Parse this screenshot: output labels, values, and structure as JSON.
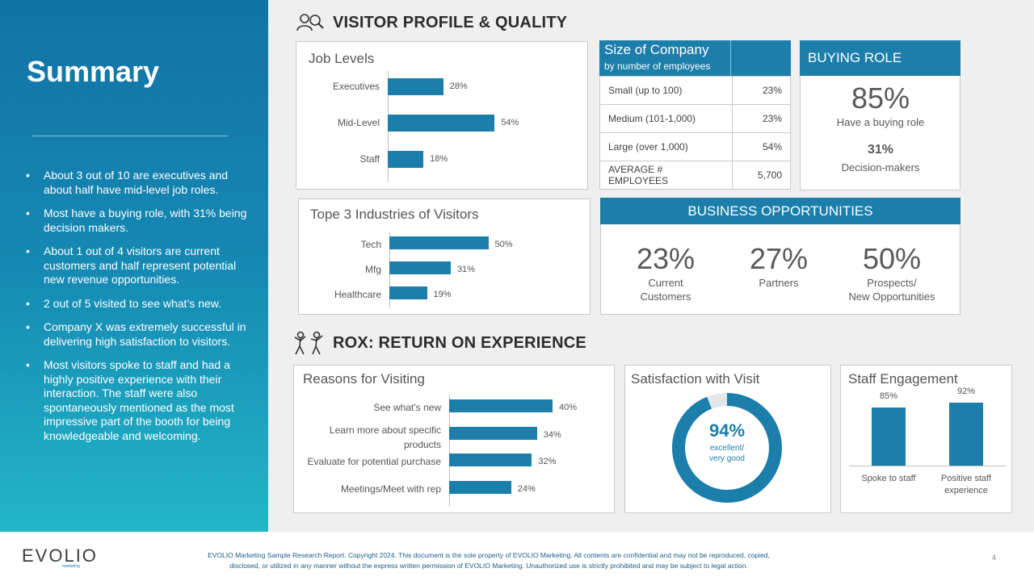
{
  "sidebar": {
    "title": "Summary",
    "bullets": [
      "About 3 out of 10 are executives and about half have mid-level job roles.",
      "Most have a buying role, with 31% being decision makers.",
      "About 1 out of 4 visitors are current customers and half represent potential new revenue opportunities.",
      "2 out of 5 visited to see what’s new.",
      "Company X was extremely successful in delivering high satisfaction to visitors.",
      "Most visitors spoke to staff and had a highly positive experience with their interaction. The staff were also spontaneously mentioned as the most impressive part of the booth for being knowledgeable and welcoming."
    ]
  },
  "sections": {
    "profile": "VISITOR PROFILE & QUALITY",
    "rox": "ROX: RETURN ON EXPERIENCE"
  },
  "job_levels": {
    "title": "Job Levels",
    "items": [
      {
        "label": "Executives",
        "value": 28,
        "text": "28%"
      },
      {
        "label": "Mid-Level",
        "value": 54,
        "text": "54%"
      },
      {
        "label": "Staff",
        "value": 18,
        "text": "18%"
      }
    ]
  },
  "company_size": {
    "title": "Size of Company",
    "subtitle": "by number of employees",
    "rows": [
      {
        "label": "Small (up to 100)",
        "value": "23%"
      },
      {
        "label": "Medium (101-1,000)",
        "value": "23%"
      },
      {
        "label": "Large (over 1,000)",
        "value": "54%"
      },
      {
        "label": "AVERAGE # EMPLOYEES",
        "value": "5,700"
      }
    ]
  },
  "buying_role": {
    "header": "BUYING ROLE",
    "big": "85%",
    "big_caption": "Have a buying role",
    "small": "31%",
    "small_caption": "Decision-makers"
  },
  "industries": {
    "title": "Tope 3 Industries of Visitors",
    "items": [
      {
        "label": "Tech",
        "value": 50,
        "text": "50%"
      },
      {
        "label": "Mfg",
        "value": 31,
        "text": "31%"
      },
      {
        "label": "Healthcare",
        "value": 19,
        "text": "19%"
      }
    ]
  },
  "opportunities": {
    "header": "BUSINESS OPPORTUNITIES",
    "items": [
      {
        "value": "23%",
        "line1": "Current",
        "line2": "Customers"
      },
      {
        "value": "27%",
        "line1": "Partners",
        "line2": ""
      },
      {
        "value": "50%",
        "line1": "Prospects/",
        "line2": "New Opportunities"
      }
    ]
  },
  "reasons": {
    "title": "Reasons for Visiting",
    "items": [
      {
        "line1": "See what's new",
        "line2": "",
        "value": 40,
        "text": "40%"
      },
      {
        "line1": "Learn more about specific",
        "line2": "products",
        "value": 34,
        "text": "34%"
      },
      {
        "line1": "Evaluate for potential purchase",
        "line2": "",
        "value": 32,
        "text": "32%"
      },
      {
        "line1": "Meetings/Meet with rep",
        "line2": "",
        "value": 24,
        "text": "24%"
      }
    ]
  },
  "satisfaction": {
    "title": "Satisfaction with Visit",
    "value": 94,
    "text": "94%",
    "caption1": "excellent/",
    "caption2": "very good"
  },
  "staff": {
    "title": "Staff Engagement",
    "items": [
      {
        "label1": "Spoke to staff",
        "label2": "",
        "value": 85,
        "text": "85%"
      },
      {
        "label1": "Positive staff",
        "label2": "experience",
        "value": 92,
        "text": "92%"
      }
    ]
  },
  "footer": {
    "logo": "EVOLIO",
    "logo_sub": "marketing",
    "line1": "EVOLIO Marketing Sample Research Report. Copyright 2024.  This document is the sole property of EVOLIO Marketing. All contents are confidential and may not be reproduced, copied,",
    "line2": "disclosed, or utilized in any manner without the express written permission of EVOLIO Marketing. Unauthorized use is strictly prohibited and may be subject to legal action.",
    "page": "4"
  },
  "colors": {
    "accent": "#1b7eab",
    "sidebar_top": "#1173a6",
    "sidebar_bottom": "#22b6c6"
  }
}
